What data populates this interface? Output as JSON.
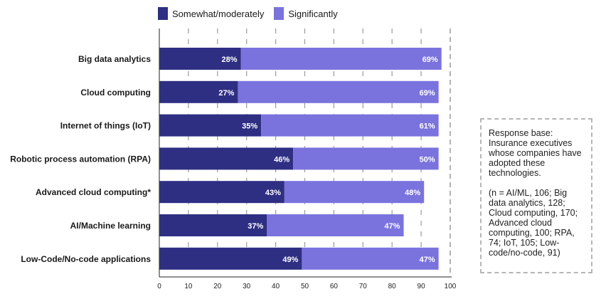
{
  "legend": {
    "series1": "Somewhat/moderately",
    "series2": "Significantly"
  },
  "colors": {
    "series1": "#2e2f83",
    "series2": "#7a73dd",
    "grid": "#9a9a9a",
    "border": "#b5b5b5"
  },
  "note": {
    "base": "Response base: Insurance executives whose companies have adopted these technologies.",
    "counts": "(n = AI/ML, 106; Big data analytics, 128; Cloud computing, 170; Advanced cloud computing, 100; RPA, 74; IoT, 105; Low-code/no-code, 91)"
  },
  "chart_data": {
    "type": "bar",
    "orientation": "horizontal",
    "stacked": true,
    "categories": [
      "Big data analytics",
      "Cloud computing",
      "Internet of things (IoT)",
      "Robotic process automation (RPA)",
      "Advanced cloud computing*",
      "AI/Machine learning",
      "Low-Code/No-code applications"
    ],
    "series": [
      {
        "name": "Somewhat/moderately",
        "values": [
          28,
          27,
          35,
          46,
          43,
          37,
          49
        ]
      },
      {
        "name": "Significantly",
        "values": [
          69,
          69,
          61,
          50,
          48,
          47,
          47
        ]
      }
    ],
    "xlim": [
      0,
      100
    ],
    "xticks": [
      0,
      10,
      20,
      30,
      40,
      50,
      60,
      70,
      80,
      90,
      100
    ],
    "value_suffix": "%",
    "grid": true,
    "legend_position": "top"
  }
}
